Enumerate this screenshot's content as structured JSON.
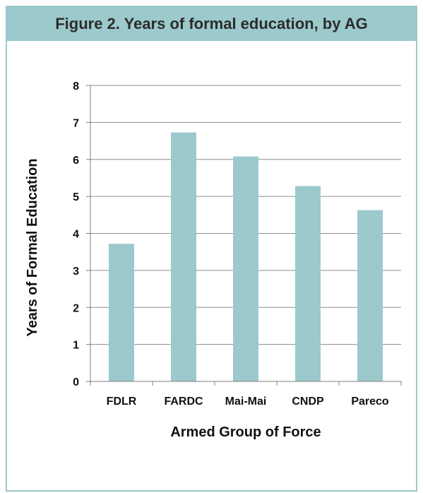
{
  "figure": {
    "title": "Figure 2. Years of formal education, by AG"
  },
  "colors": {
    "bar": "#9cc9cc",
    "grid": "#8c8c8c",
    "axis": "#7f7f7f"
  },
  "chart_data": {
    "type": "bar",
    "categories": [
      "FDLR",
      "FARDC",
      "Mai-Mai",
      "CNDP",
      "Pareco"
    ],
    "values": [
      3.72,
      6.73,
      6.08,
      5.28,
      4.63
    ],
    "xlabel": "Armed Group of Force",
    "ylabel": "Years of Formal Education",
    "ylim": [
      0,
      8
    ],
    "yticks": [
      "0",
      "1",
      "2",
      "3",
      "4",
      "5",
      "6",
      "7",
      "8"
    ],
    "grid": true,
    "legend": "none"
  }
}
